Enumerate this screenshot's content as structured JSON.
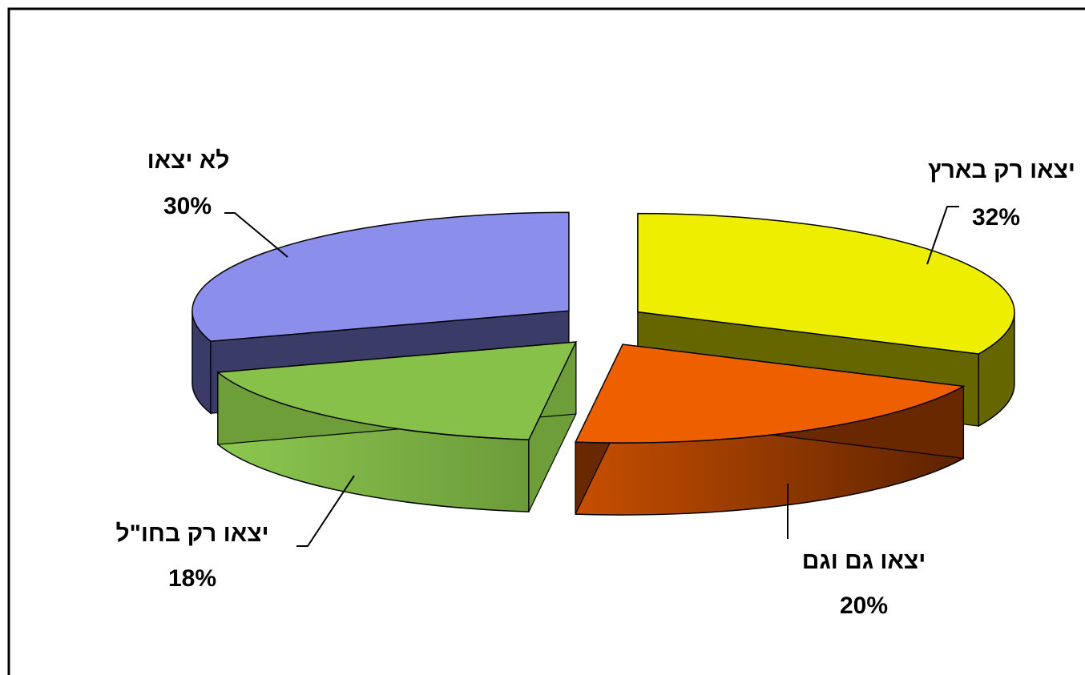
{
  "chart_data": {
    "type": "pie",
    "title": "",
    "style": "3d-exploded",
    "slices": [
      {
        "label": "יצאו רק בארץ",
        "value": 32,
        "value_label": "32%",
        "color": "#eeee00",
        "side_color": "#666600"
      },
      {
        "label": "יצאו גם וגם",
        "value": 20,
        "value_label": "20%",
        "color": "#ee5f00",
        "side_color": "#6a2800"
      },
      {
        "label": "יצאו רק בחו\"ל",
        "value": 18,
        "value_label": "18%",
        "color": "#88c14a",
        "side_color": "#6e9e3a"
      },
      {
        "label": "לא יצאו",
        "value": 30,
        "value_label": "30%",
        "color": "#8b8eea",
        "side_color": "#3a3b66"
      }
    ],
    "legend": "none"
  }
}
